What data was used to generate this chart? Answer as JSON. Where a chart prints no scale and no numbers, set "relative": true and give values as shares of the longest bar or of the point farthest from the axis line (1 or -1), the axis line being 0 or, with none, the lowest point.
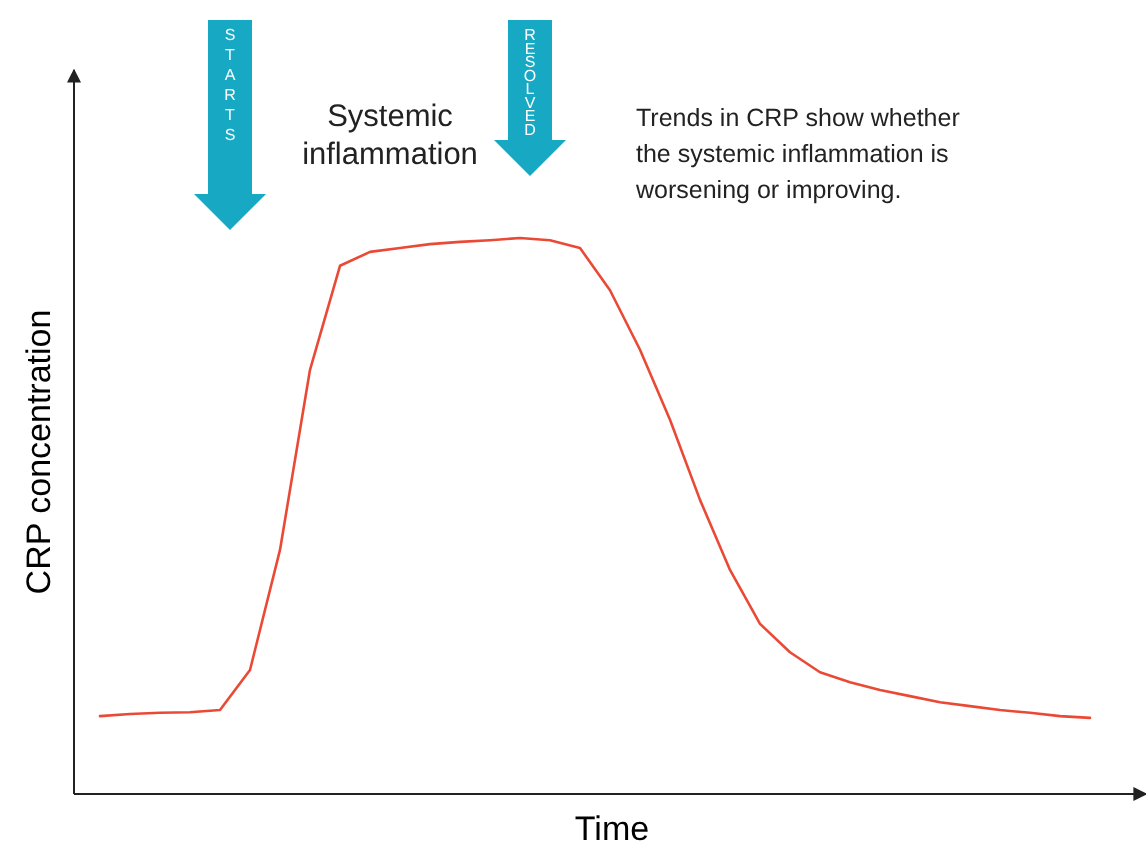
{
  "chart_data": {
    "type": "line",
    "relative": true,
    "xlabel": "Time",
    "ylabel": "CRP concentration",
    "categories": [
      null,
      null,
      null,
      null,
      null,
      null,
      null,
      null,
      null,
      null,
      null,
      null,
      null,
      null,
      null,
      null,
      null,
      null,
      null,
      null,
      null,
      null,
      null,
      null,
      null,
      null,
      null,
      null,
      null,
      null,
      null,
      null,
      null,
      null
    ],
    "series": [
      {
        "color": "#ea4a35",
        "values": [
          0.14,
          0.144,
          0.146,
          0.147,
          0.151,
          0.223,
          0.439,
          0.763,
          0.95,
          0.975,
          0.982,
          0.989,
          0.993,
          0.996,
          1,
          0.996,
          0.982,
          0.906,
          0.799,
          0.673,
          0.529,
          0.403,
          0.306,
          0.255,
          0.219,
          0.201,
          0.187,
          0.176,
          0.165,
          0.158,
          0.151,
          0.146,
          0.14,
          0.137
        ]
      }
    ],
    "annotations": [
      "STARTS",
      "RESOLVED",
      "Systemic\ninflammation",
      "Trends in CRP show whether\nthe systemic inflammation is\nworsening or improving."
    ],
    "marker": "none",
    "line_style": "solid"
  }
}
